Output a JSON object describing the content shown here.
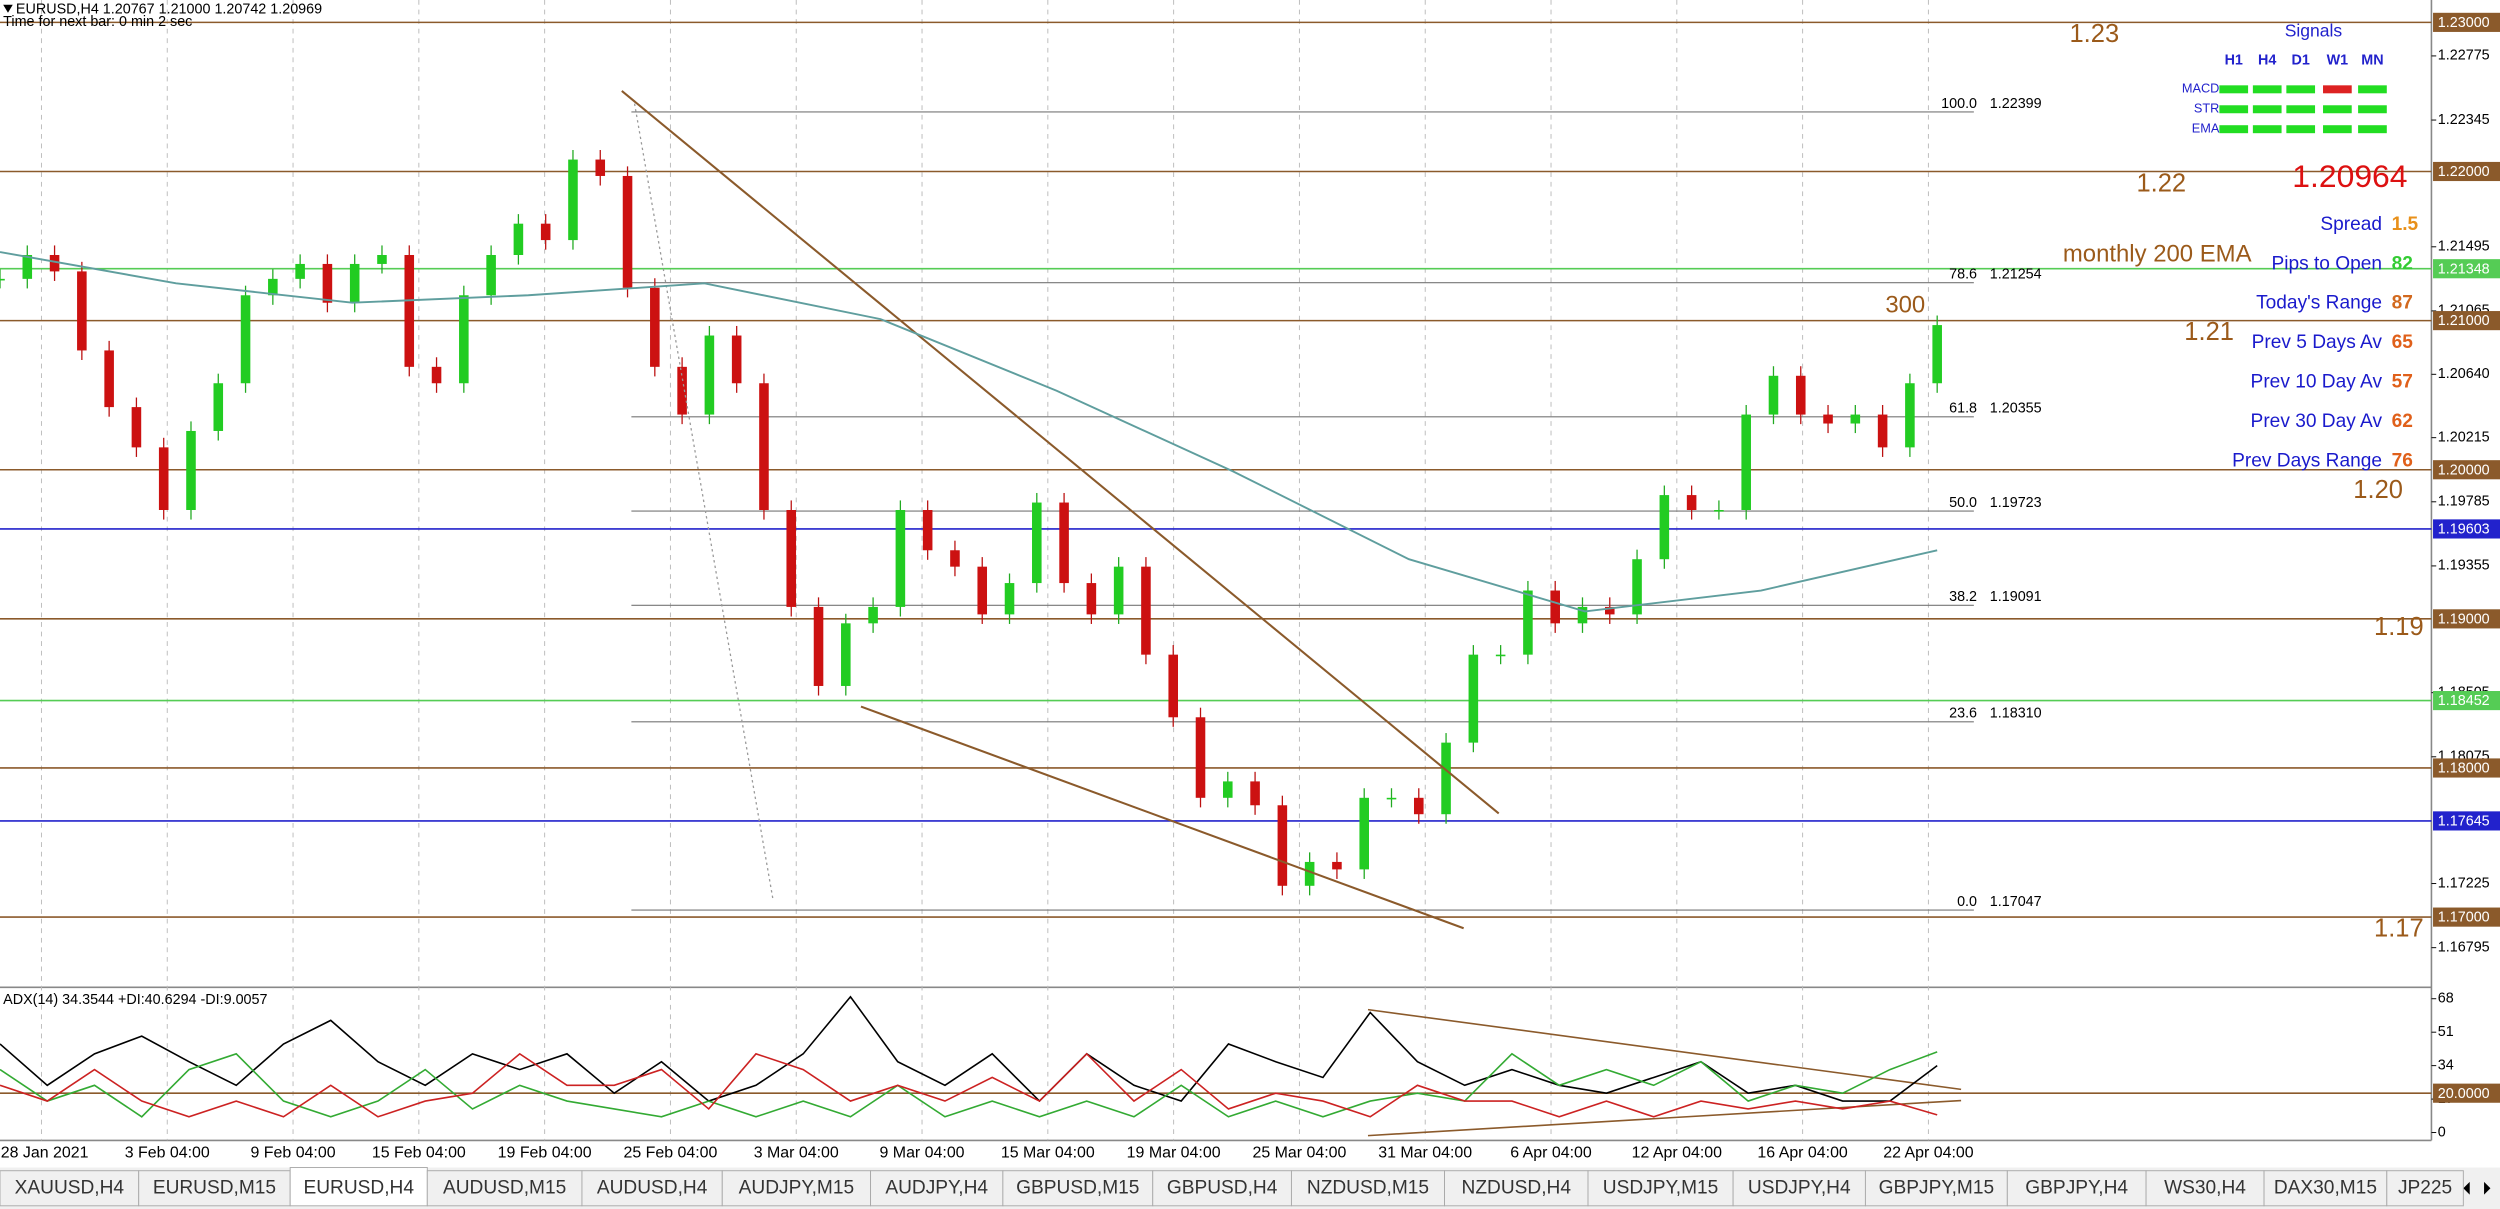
{
  "header": {
    "symbol_line": "EURUSD,H4  1.20767 1.21000 1.20742 1.20969",
    "timer": "Time for next bar: 0 min 2 sec"
  },
  "chart": {
    "ylim": [
      1.1654,
      1.2315
    ],
    "price_ticks": [
      1.22775,
      1.22345,
      1.21495,
      1.21065,
      {
        "value": 1.2064,
        "label": "1.20640"
      },
      1.20215,
      1.19785,
      1.19355,
      1.18505,
      1.18075,
      1.17225,
      1.16795
    ],
    "levels": [
      {
        "price": {
          "value": 1.23,
          "label": "1.23000"
        },
        "color": "#8b5a2b"
      },
      {
        "price": {
          "value": 1.22,
          "label": "1.22000"
        },
        "color": "#8b5a2b"
      },
      {
        "price": 1.21348,
        "color": "#55cc55"
      },
      {
        "price": {
          "value": 1.21,
          "label": "1.21000"
        },
        "color": "#8b5a2b"
      },
      {
        "price": {
          "value": 1.2,
          "label": "1.20000"
        },
        "color": "#8b5a2b"
      },
      {
        "price": 1.19603,
        "color": "#2222cc"
      },
      {
        "price": {
          "value": 1.19,
          "label": "1.19000"
        },
        "color": "#8b5a2b"
      },
      {
        "price": 1.18452,
        "color": "#55cc55"
      },
      {
        "price": {
          "value": 1.18,
          "label": "1.18000"
        },
        "color": "#8b5a2b"
      },
      {
        "price": 1.17645,
        "color": "#2222cc"
      },
      {
        "price": {
          "value": 1.17,
          "label": "1.17000"
        },
        "color": "#8b5a2b"
      }
    ],
    "round_labels": [
      1.23,
      1.22,
      1.21,
      {
        "value": 1.2,
        "label": "1.20"
      },
      1.19,
      1.17
    ],
    "annotations": [
      "300",
      "monthly 200 EMA"
    ],
    "fibonacci": [
      {
        "level": {
          "value": 100,
          "label": "100.0"
        },
        "price": 1.22399
      },
      {
        "level": 78.6,
        "price": 1.21254
      },
      {
        "level": 61.8,
        "price": 1.20355
      },
      {
        "level": {
          "value": 50,
          "label": "50.0"
        },
        "price": 1.19723
      },
      {
        "level": 38.2,
        "price": 1.19091
      },
      {
        "level": 23.6,
        "price": {
          "value": 1.1831,
          "label": "1.18310"
        }
      },
      {
        "level": {
          "value": 0,
          "label": "0.0"
        },
        "price": 1.17047
      }
    ],
    "close_path": [
      1.2128,
      1.2144,
      1.2133,
      1.208,
      1.2042,
      1.2015,
      1.1973,
      1.2026,
      1.2058,
      1.2117,
      1.2128,
      1.2138,
      1.2112,
      1.2138,
      1.2144,
      1.2069,
      1.2058,
      1.2117,
      1.2144,
      1.2165,
      1.2154,
      1.2208,
      1.2197,
      1.2122,
      1.2069,
      1.2037,
      1.209,
      1.2058,
      1.1973,
      1.1908,
      1.1855,
      1.1897,
      1.1908,
      1.1973,
      1.1946,
      1.1935,
      1.1903,
      1.1924,
      1.1978,
      1.1924,
      1.1903,
      1.1935,
      1.1876,
      1.1834,
      1.178,
      1.1791,
      1.1775,
      1.1721,
      1.1737,
      1.1732,
      1.178,
      1.178,
      1.1769,
      1.1817,
      1.1876,
      1.1876,
      1.1919,
      1.1897,
      1.1908,
      1.1903,
      1.194,
      1.1983,
      1.1973,
      1.1973,
      1.2037,
      1.2063,
      1.2037,
      1.2031,
      1.2037,
      1.2015,
      1.2058,
      1.2097
    ],
    "ema_slow": [
      1.2146,
      1.2125,
      1.2112,
      1.2117,
      1.2125,
      1.2101,
      1.2053,
      1.1999,
      1.194,
      1.1905,
      1.1919,
      1.1946
    ],
    "time_labels": [
      "28 Jan 2021",
      "3 Feb 04:00",
      "9 Feb 04:00",
      "15 Feb 04:00",
      "19 Feb 04:00",
      "25 Feb 04:00",
      "3 Mar 04:00",
      "9 Mar 04:00",
      "15 Mar 04:00",
      "19 Mar 04:00",
      "25 Mar 04:00",
      "31 Mar 04:00",
      "6 Apr 04:00",
      "12 Apr 04:00",
      "16 Apr 04:00",
      "22 Apr 04:00"
    ]
  },
  "adx": {
    "title": "ADX(14) 34.3544 +DI:40.6294 -DI:9.0057",
    "ylim": [
      -4,
      73
    ],
    "yticks": [
      68,
      51,
      34,
      17,
      0
    ],
    "level": {
      "value": 20,
      "label": "20.0000"
    },
    "series": [
      {
        "color": "#000000",
        "values": [
          45,
          24,
          40,
          49,
          36,
          24,
          45,
          57,
          36,
          24,
          40,
          32,
          40,
          20,
          36,
          16,
          24,
          40,
          69,
          36,
          24,
          40,
          16,
          40,
          24,
          16,
          45,
          36,
          28,
          61,
          36,
          24,
          32,
          24,
          20,
          28,
          36,
          20,
          24,
          16,
          16,
          34
        ]
      },
      {
        "color": "#33aa33",
        "values": [
          32,
          16,
          24,
          8,
          32,
          40,
          16,
          8,
          16,
          32,
          12,
          24,
          16,
          12,
          8,
          16,
          8,
          16,
          8,
          24,
          8,
          16,
          8,
          16,
          8,
          24,
          8,
          16,
          8,
          16,
          20,
          16,
          40,
          24,
          32,
          24,
          36,
          16,
          24,
          20,
          32,
          41
        ]
      },
      {
        "color": "#cc2222",
        "values": [
          24,
          16,
          32,
          16,
          8,
          16,
          8,
          24,
          8,
          16,
          20,
          40,
          24,
          24,
          32,
          12,
          40,
          32,
          16,
          24,
          16,
          28,
          16,
          40,
          16,
          32,
          12,
          20,
          16,
          8,
          24,
          16,
          16,
          8,
          16,
          8,
          16,
          12,
          16,
          12,
          16,
          9
        ]
      }
    ]
  },
  "signals": {
    "title": "Signals",
    "timeframes": [
      "H1",
      "H4",
      "D1",
      "W1",
      "MN"
    ],
    "rows": [
      {
        "name": "MACD",
        "cells": [
          "#22dd22",
          "#22dd22",
          "#22dd22",
          "#dd2222",
          "#22dd22"
        ]
      },
      {
        "name": "STR",
        "cells": [
          "#22dd22",
          "#22dd22",
          "#22dd22",
          "#22dd22",
          "#22dd22"
        ]
      },
      {
        "name": "EMA",
        "cells": [
          "#22dd22",
          "#22dd22",
          "#22dd22",
          "#22dd22",
          "#22dd22"
        ]
      }
    ]
  },
  "stats": {
    "price": 1.20964,
    "rows": [
      {
        "label": "Spread",
        "value": 1.5,
        "color": "#e8901a"
      },
      {
        "label": "Pips to Open",
        "value": 82,
        "color": "#33cc33"
      },
      {
        "label": "Today's Range",
        "value": 87,
        "color": "#d2691e"
      },
      {
        "label": "Prev 5 Days Av",
        "value": 65,
        "color": "#e0601a"
      },
      {
        "label": "Prev 10 Day Av",
        "value": 57,
        "color": "#e0601a"
      },
      {
        "label": "Prev 30 Day Av",
        "value": 62,
        "color": "#e0601a"
      },
      {
        "label": "Prev Days Range",
        "value": 76,
        "color": "#e0601a"
      }
    ]
  },
  "tabs": {
    "items": [
      "XAUUSD,H4",
      "EURUSD,M15",
      "EURUSD,H4",
      "AUDUSD,M15",
      "AUDUSD,H4",
      "AUDJPY,M15",
      "AUDJPY,H4",
      "GBPUSD,M15",
      "GBPUSD,H4",
      "NZDUSD,M15",
      "NZDUSD,H4",
      "USDJPY,M15",
      "USDJPY,H4",
      "GBPJPY,M15",
      "GBPJPY,H4",
      "WS30,H4",
      "DAX30,M15",
      "JP225"
    ],
    "active": 2
  }
}
